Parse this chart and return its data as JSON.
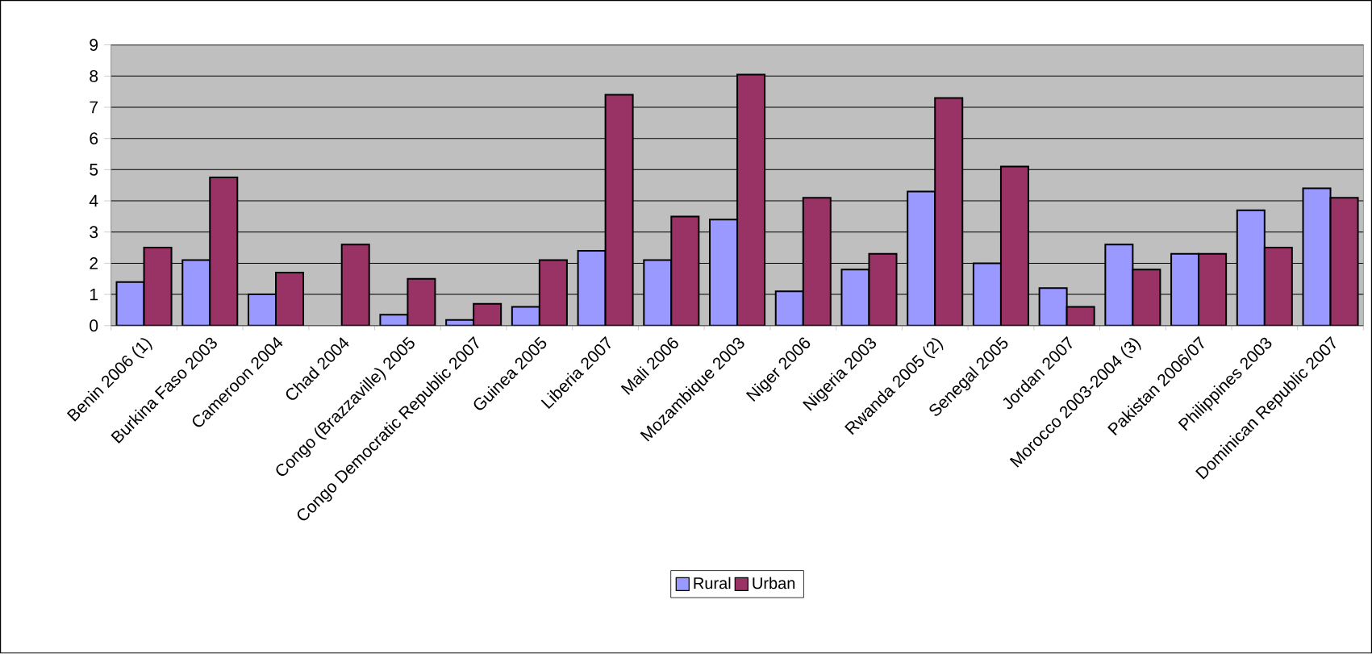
{
  "chart_data": {
    "type": "bar",
    "categories": [
      "Benin 2006 (1)",
      "Burkina Faso 2003",
      "Cameroon 2004",
      "Chad 2004",
      "Congo (Brazzaville) 2005",
      "Congo Democratic Republic 2007",
      "Guinea 2005",
      "Liberia 2007",
      "Mali 2006",
      "Mozambique 2003",
      "Niger 2006",
      "Nigeria 2003",
      "Rwanda 2005 (2)",
      "Senegal 2005",
      "Jordan 2007",
      "Morocco 2003-2004 (3)",
      "Pakistan 2006/07",
      "Philippines 2003",
      "Dominican Republic 2007"
    ],
    "series": [
      {
        "name": "Rural",
        "color": "#9999ff",
        "values": [
          1.4,
          2.1,
          1.0,
          null,
          0.35,
          0.18,
          0.6,
          2.4,
          2.1,
          3.4,
          1.1,
          1.8,
          4.3,
          2.0,
          1.2,
          2.6,
          2.3,
          3.7,
          4.4
        ]
      },
      {
        "name": "Urban",
        "color": "#993366",
        "values": [
          2.5,
          4.75,
          1.7,
          2.6,
          1.5,
          0.7,
          2.1,
          7.4,
          3.5,
          8.05,
          4.1,
          2.3,
          7.3,
          5.1,
          0.6,
          1.8,
          2.3,
          2.5,
          4.1
        ]
      }
    ],
    "ylim": [
      0,
      9
    ],
    "yticks": [
      0,
      1,
      2,
      3,
      4,
      5,
      6,
      7,
      8,
      9
    ],
    "grid": "y",
    "legend": "bottom"
  }
}
